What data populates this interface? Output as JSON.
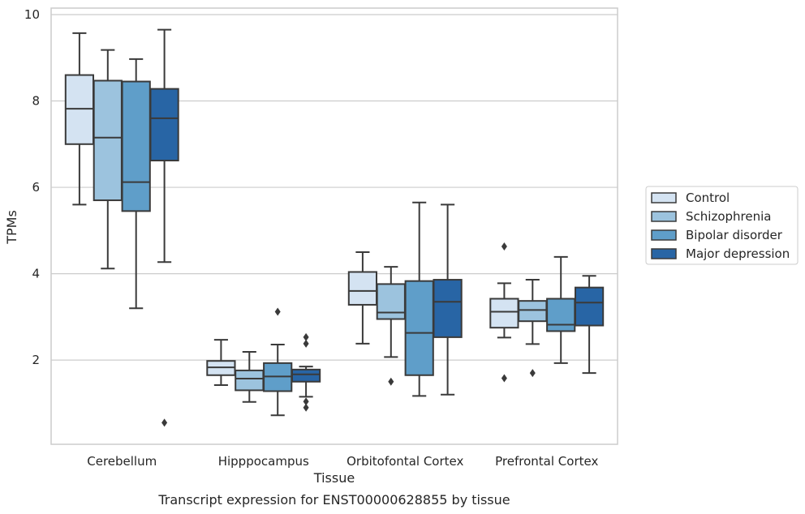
{
  "caption": "Transcript expression for ENST00000628855 by tissue",
  "chart_data": {
    "type": "box",
    "xlabel": "Tissue",
    "ylabel": "TPMs",
    "ylim": [
      0.05,
      10.15
    ],
    "yticks": [
      2,
      4,
      6,
      8,
      10
    ],
    "grid": "horizontal",
    "legend_position": "right",
    "categories": [
      "Cerebellum",
      "Hipppocampus",
      "Orbitofontal Cortex",
      "Prefrontal Cortex"
    ],
    "series": [
      {
        "name": "Control",
        "color": "#d4e3f2",
        "boxes": [
          {
            "whisker_low": 5.6,
            "q1": 7.0,
            "median": 7.82,
            "q3": 8.6,
            "whisker_high": 9.57,
            "outliers": []
          },
          {
            "whisker_low": 1.42,
            "q1": 1.65,
            "median": 1.83,
            "q3": 1.98,
            "whisker_high": 2.47,
            "outliers": []
          },
          {
            "whisker_low": 2.38,
            "q1": 3.28,
            "median": 3.6,
            "q3": 4.04,
            "whisker_high": 4.5,
            "outliers": []
          },
          {
            "whisker_low": 2.52,
            "q1": 2.75,
            "median": 3.12,
            "q3": 3.42,
            "whisker_high": 3.78,
            "outliers": [
              4.63,
              1.58
            ]
          }
        ]
      },
      {
        "name": "Schizophrenia",
        "color": "#9cc3de",
        "boxes": [
          {
            "whisker_low": 4.12,
            "q1": 5.7,
            "median": 7.15,
            "q3": 8.47,
            "whisker_high": 9.18,
            "outliers": []
          },
          {
            "whisker_low": 1.03,
            "q1": 1.3,
            "median": 1.57,
            "q3": 1.76,
            "whisker_high": 2.19,
            "outliers": []
          },
          {
            "whisker_low": 2.07,
            "q1": 2.95,
            "median": 3.1,
            "q3": 3.76,
            "whisker_high": 4.16,
            "outliers": [
              1.5
            ]
          },
          {
            "whisker_low": 2.37,
            "q1": 2.9,
            "median": 3.16,
            "q3": 3.37,
            "whisker_high": 3.86,
            "outliers": [
              1.7
            ]
          }
        ]
      },
      {
        "name": "Bipolar disorder",
        "color": "#5f9ec9",
        "boxes": [
          {
            "whisker_low": 3.2,
            "q1": 5.45,
            "median": 6.12,
            "q3": 8.45,
            "whisker_high": 8.97,
            "outliers": []
          },
          {
            "whisker_low": 0.72,
            "q1": 1.28,
            "median": 1.62,
            "q3": 1.93,
            "whisker_high": 2.36,
            "outliers": [
              3.12
            ]
          },
          {
            "whisker_low": 1.17,
            "q1": 1.65,
            "median": 2.63,
            "q3": 3.83,
            "whisker_high": 5.65,
            "outliers": []
          },
          {
            "whisker_low": 1.93,
            "q1": 2.67,
            "median": 2.82,
            "q3": 3.42,
            "whisker_high": 4.39,
            "outliers": []
          }
        ]
      },
      {
        "name": "Major depression",
        "color": "#2865a5",
        "boxes": [
          {
            "whisker_low": 4.27,
            "q1": 6.62,
            "median": 7.6,
            "q3": 8.28,
            "whisker_high": 9.65,
            "outliers": [
              0.55
            ]
          },
          {
            "whisker_low": 1.15,
            "q1": 1.5,
            "median": 1.67,
            "q3": 1.78,
            "whisker_high": 1.85,
            "outliers": [
              2.53,
              2.38,
              1.04,
              0.9
            ]
          },
          {
            "whisker_low": 1.2,
            "q1": 2.53,
            "median": 3.35,
            "q3": 3.86,
            "whisker_high": 5.6,
            "outliers": []
          },
          {
            "whisker_low": 1.7,
            "q1": 2.8,
            "median": 3.33,
            "q3": 3.68,
            "whisker_high": 3.95,
            "outliers": []
          }
        ]
      }
    ]
  }
}
